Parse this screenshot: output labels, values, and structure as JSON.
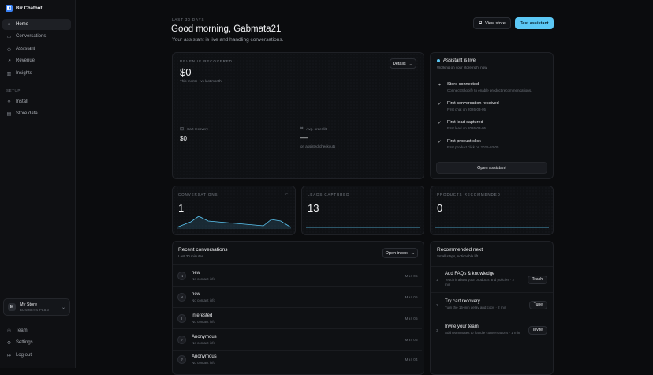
{
  "brand": {
    "name": "Biz Chatbot"
  },
  "nav": {
    "items": [
      {
        "label": "Home",
        "icon": "home-icon"
      },
      {
        "label": "Conversations",
        "icon": "chat-icon"
      },
      {
        "label": "Assistant",
        "icon": "assistant-icon"
      },
      {
        "label": "Revenue",
        "icon": "trend-icon"
      },
      {
        "label": "Insights",
        "icon": "bar-chart-icon"
      }
    ],
    "setup_label": "SETUP",
    "setup_items": [
      {
        "label": "Install",
        "icon": "code-icon"
      },
      {
        "label": "Store data",
        "icon": "database-icon"
      }
    ],
    "bottom_items": [
      {
        "label": "Team",
        "icon": "team-icon"
      },
      {
        "label": "Settings",
        "icon": "gear-icon"
      },
      {
        "label": "Log out",
        "icon": "logout-icon"
      }
    ]
  },
  "store": {
    "initial": "M",
    "name": "My Store",
    "plan": "BUSINESS PLAN"
  },
  "header": {
    "kicker": "LAST 30 DAYS",
    "greeting": "Good morning, Gabmata21",
    "subtitle": "Your assistant is live and handling conversations.",
    "view_store": "View store",
    "test_assistant": "Test assistant"
  },
  "revenue": {
    "label": "REVENUE RECOVERED",
    "value": "$0",
    "note": "This month · vs last month",
    "details": "Details",
    "cart_label": "Cart recovery",
    "cart_value": "$0",
    "aov_label": "Avg. order lift",
    "aov_value": "—",
    "aov_note": "on assisted checkouts"
  },
  "assistant": {
    "title": "Assistant is live",
    "subtitle": "Working on your store right now",
    "steps": [
      {
        "title": "Store connected",
        "sub": "Connect Shopify to enable product recommendations.",
        "icon": "plus-icon"
      },
      {
        "title": "First conversation received",
        "sub": "First chat on 2026-03-05",
        "icon": "check-icon"
      },
      {
        "title": "First lead captured",
        "sub": "First lead on 2026-03-05",
        "icon": "check-icon"
      },
      {
        "title": "First product click",
        "sub": "First product click on 2026-03-05",
        "icon": "check-icon"
      }
    ],
    "open_button": "Open assistant"
  },
  "stats": {
    "conversations": {
      "label": "CONVERSATIONS",
      "value": "1"
    },
    "leads": {
      "label": "LEADS CAPTURED",
      "value": "13"
    },
    "products": {
      "label": "PRODUCTS RECOMMENDED",
      "value": "0"
    }
  },
  "recent": {
    "title": "Recent conversations",
    "subtitle": "Last 30 minutes",
    "open_inbox": "Open inbox",
    "rows": [
      {
        "initials": "N",
        "name": "new",
        "sub": "No contact info",
        "date": "Mar 05"
      },
      {
        "initials": "N",
        "name": "new",
        "sub": "No contact info",
        "date": "Mar 05"
      },
      {
        "initials": "I",
        "name": "interested",
        "sub": "No contact info",
        "date": "Mar 05"
      },
      {
        "initials": "?",
        "name": "Anonymous",
        "sub": "No contact info",
        "date": "Mar 05"
      },
      {
        "initials": "?",
        "name": "Anonymous",
        "sub": "No contact info",
        "date": "Mar 04"
      }
    ]
  },
  "recommended": {
    "title": "Recommended next",
    "subtitle": "Small steps, noticeable lift",
    "items": [
      {
        "num": "1",
        "title": "Add FAQs & knowledge",
        "sub": "Teach it about your products and policies · 2 min",
        "action": "Teach"
      },
      {
        "num": "2",
        "title": "Try cart recovery",
        "sub": "Turn the 15-min delay and copy · 2 min",
        "action": "Tune"
      },
      {
        "num": "3",
        "title": "Invite your team",
        "sub": "Add teammates to handle conversations · 1 min",
        "action": "Invite"
      }
    ]
  }
}
